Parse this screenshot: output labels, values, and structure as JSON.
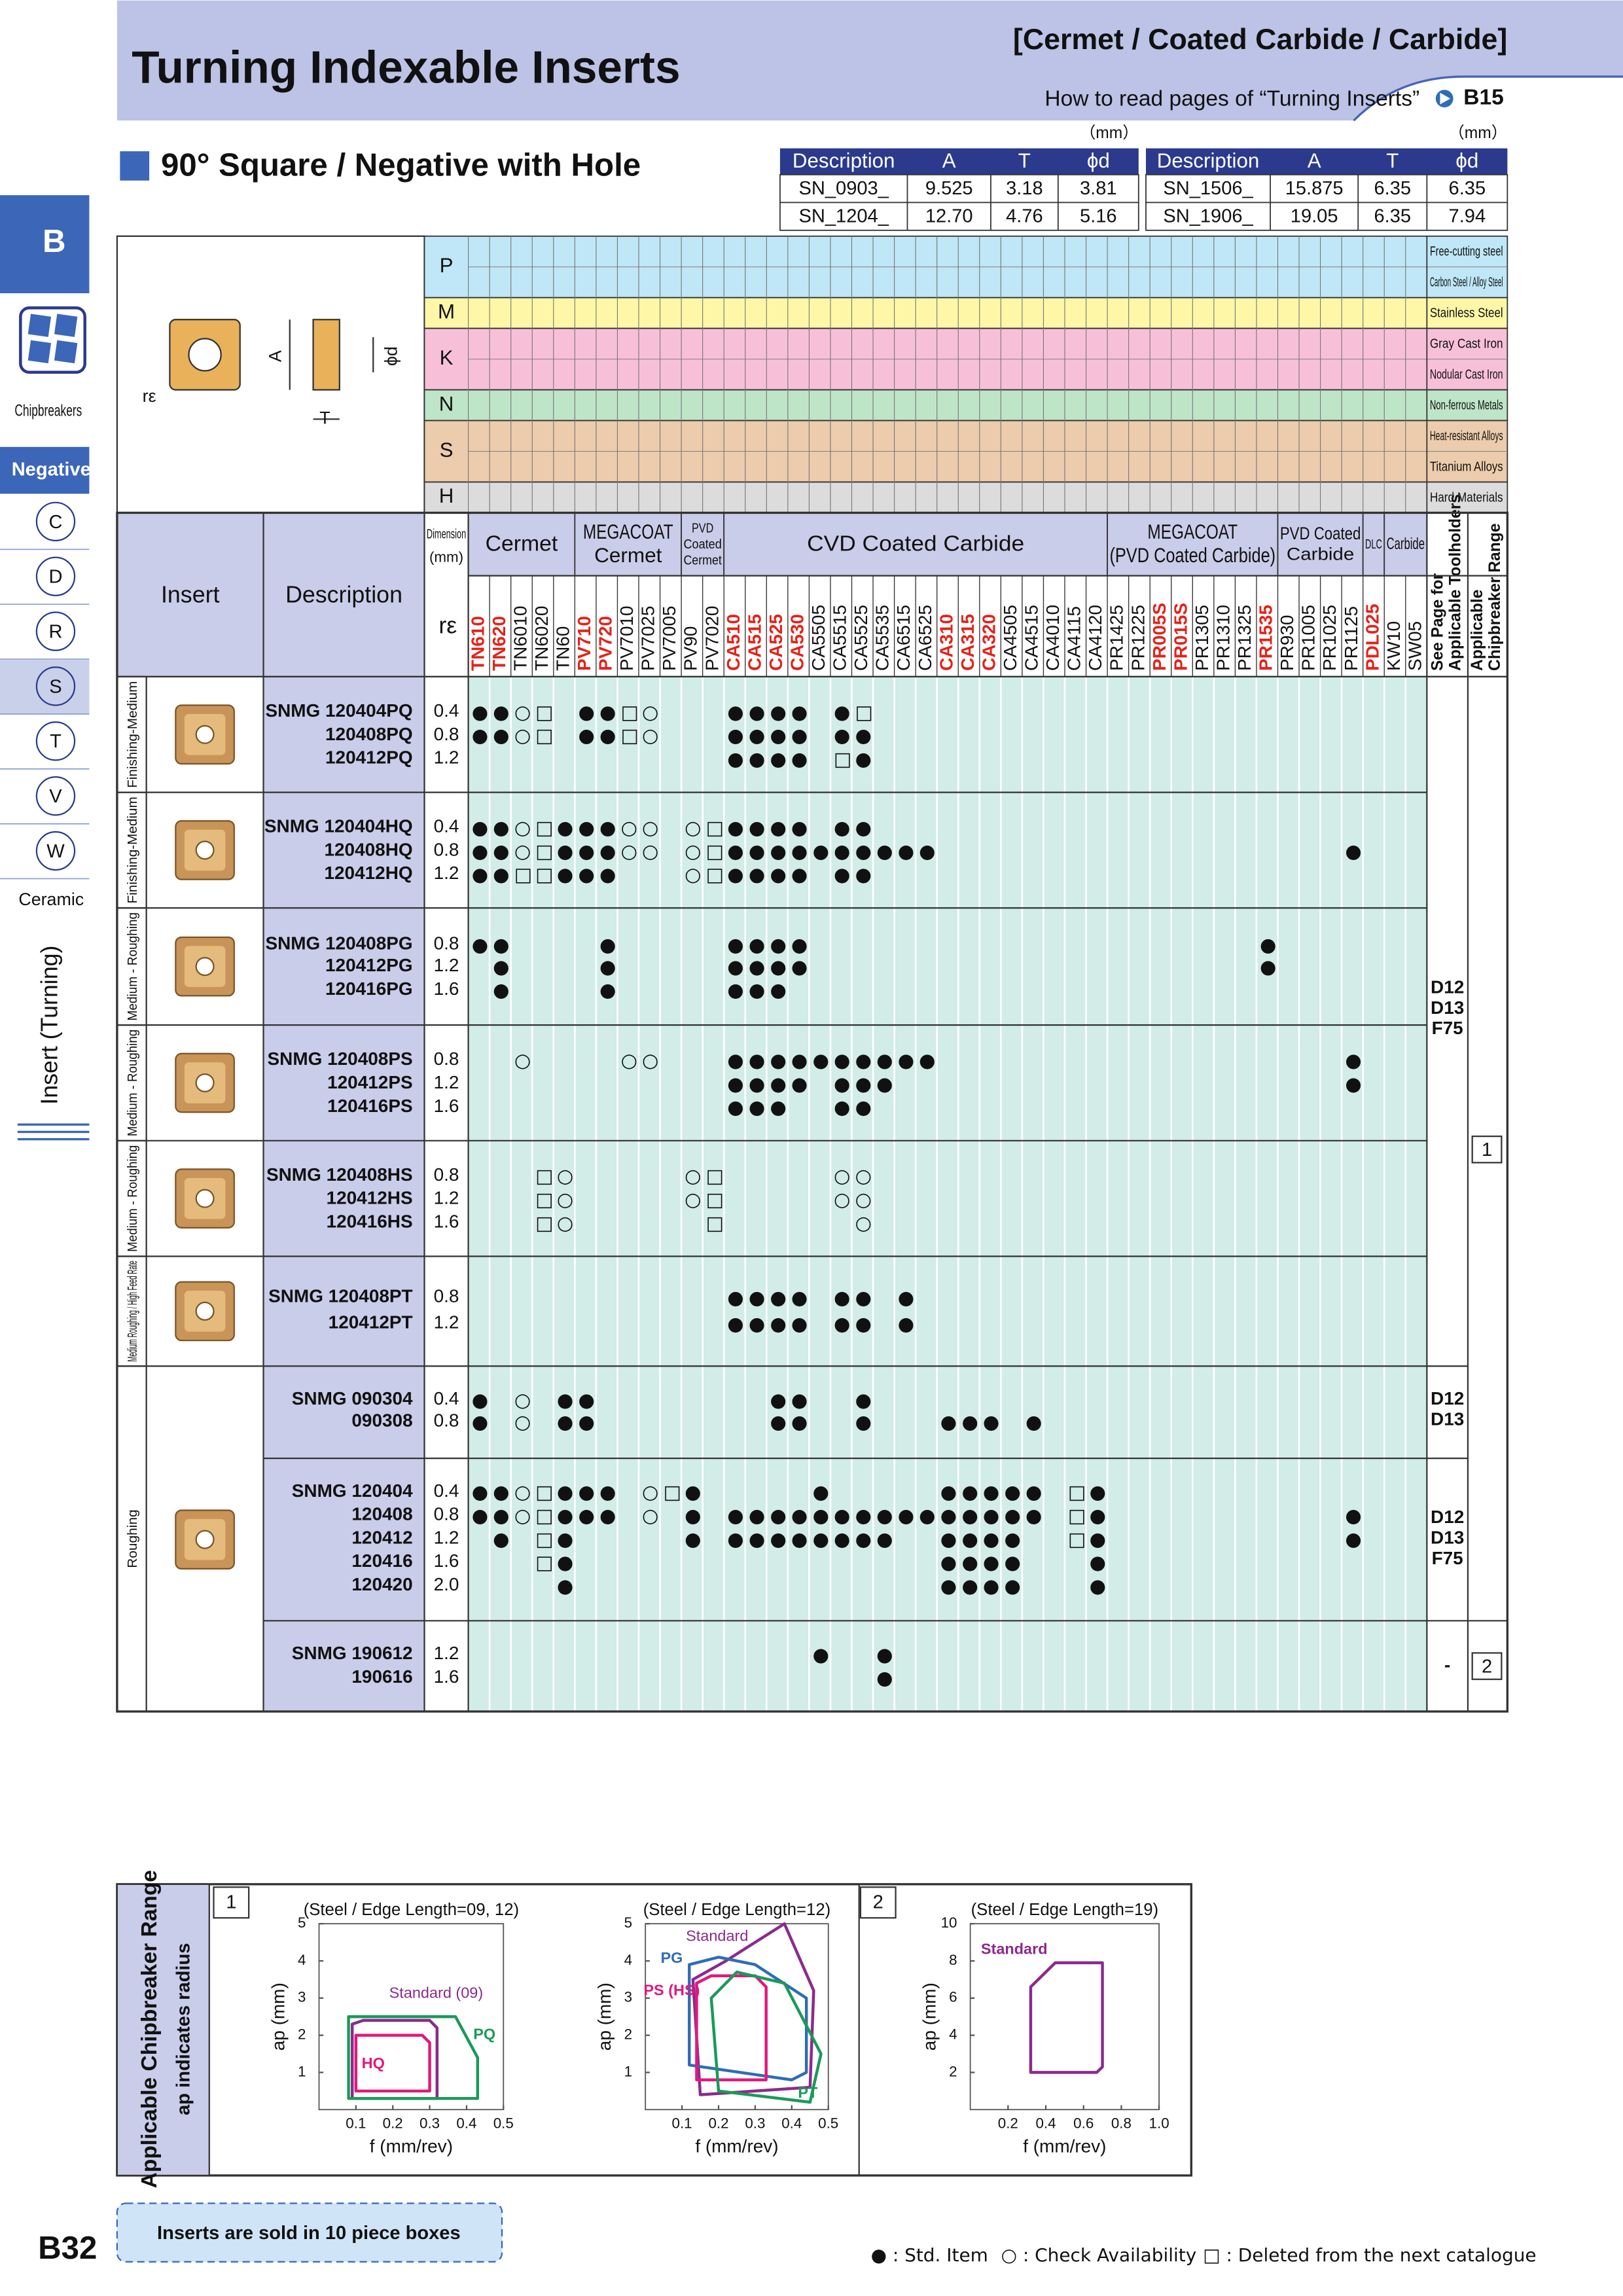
{
  "header": {
    "title": "Turning Indexable Inserts",
    "category": "[Cermet / Coated Carbide / Carbide]",
    "howto": "How to read pages of “Turning Inserts”",
    "ref": "B15"
  },
  "section_title": "90° Square / Negative with Hole",
  "dim_tables": [
    {
      "unit": "（mm）",
      "headers": [
        "Description",
        "A",
        "T",
        "ϕd"
      ],
      "rows": [
        [
          "SN_0903_",
          "9.525",
          "3.18",
          "3.81"
        ],
        [
          "SN_1204_",
          "12.70",
          "4.76",
          "5.16"
        ]
      ]
    },
    {
      "unit": "（mm）",
      "headers": [
        "Description",
        "A",
        "T",
        "ϕd"
      ],
      "rows": [
        [
          "SN_1506_",
          "15.875",
          "6.35",
          "6.35"
        ],
        [
          "SN_1906_",
          "19.05",
          "6.35",
          "7.94"
        ]
      ]
    }
  ],
  "sidebar": {
    "tab": "B",
    "chipbreakers": "Chipbreakers",
    "negative": "Negative",
    "shapes": [
      "C",
      "D",
      "R",
      "S",
      "T",
      "V",
      "W"
    ],
    "ceramic": "Ceramic",
    "vertical": "Insert (Turning)"
  },
  "diagram": {
    "labels": [
      "A",
      "ϕd",
      "T",
      "rε"
    ]
  },
  "materials": [
    {
      "letter": "P",
      "names": [
        "Free-cutting steel",
        "Carbon Steel / Alloy Steel"
      ],
      "color": "#bfe7f7"
    },
    {
      "letter": "M",
      "names": [
        "Stainless Steel"
      ],
      "color": "#fff7a8"
    },
    {
      "letter": "K",
      "names": [
        "Gray Cast Iron",
        "Nodular Cast Iron"
      ],
      "color": "#f8c0d8"
    },
    {
      "letter": "N",
      "names": [
        "Non-ferrous Metals"
      ],
      "color": "#bfe5c9"
    },
    {
      "letter": "S",
      "names": [
        "Heat-resistant Alloys",
        "Titanium Alloys"
      ],
      "color": "#ecccac"
    },
    {
      "letter": "H",
      "names": [
        "Hard Materials"
      ],
      "color": "#dcdcdc"
    }
  ],
  "table": {
    "insert": "Insert",
    "description": "Description",
    "dimension": [
      "Dimension",
      "(mm)"
    ],
    "re": "rε",
    "toolholders": [
      "See Page for",
      "Applicable Toolholders"
    ],
    "chipbreaker": [
      "Applicable",
      "Chipbreaker Range"
    ],
    "groups": [
      {
        "name": [
          "Cermet"
        ],
        "grades": [
          {
            "name": "TN610",
            "color": "#e2231a"
          },
          {
            "name": "TN620",
            "color": "#e2231a"
          },
          {
            "name": "TN6010",
            "color": "#111111"
          },
          {
            "name": "TN6020",
            "color": "#111111"
          },
          {
            "name": "TN60",
            "color": "#111111"
          }
        ]
      },
      {
        "name": [
          "MEGACOAT",
          "Cermet"
        ],
        "grades": [
          {
            "name": "PV710",
            "color": "#e2231a"
          },
          {
            "name": "PV720",
            "color": "#e2231a"
          },
          {
            "name": "PV7010",
            "color": "#111111"
          },
          {
            "name": "PV7025",
            "color": "#111111"
          },
          {
            "name": "PV7005",
            "color": "#111111"
          }
        ]
      },
      {
        "name": [
          "PVD",
          "Coated",
          "Cermet"
        ],
        "grades": [
          {
            "name": "PV90",
            "color": "#111111"
          },
          {
            "name": "PV7020",
            "color": "#111111"
          }
        ]
      },
      {
        "name": [
          "CVD Coated Carbide"
        ],
        "grades": [
          {
            "name": "CA510",
            "color": "#e2231a"
          },
          {
            "name": "CA515",
            "color": "#e2231a"
          },
          {
            "name": "CA525",
            "color": "#e2231a"
          },
          {
            "name": "CA530",
            "color": "#e2231a"
          },
          {
            "name": "CA5505",
            "color": "#111111"
          },
          {
            "name": "CA5515",
            "color": "#111111"
          },
          {
            "name": "CA5525",
            "color": "#111111"
          },
          {
            "name": "CA5535",
            "color": "#111111"
          },
          {
            "name": "CA6515",
            "color": "#111111"
          },
          {
            "name": "CA6525",
            "color": "#111111"
          },
          {
            "name": "CA310",
            "color": "#e2231a"
          },
          {
            "name": "CA315",
            "color": "#e2231a"
          },
          {
            "name": "CA320",
            "color": "#e2231a"
          },
          {
            "name": "CA4505",
            "color": "#111111"
          },
          {
            "name": "CA4515",
            "color": "#111111"
          },
          {
            "name": "CA4010",
            "color": "#111111"
          },
          {
            "name": "CA4115",
            "color": "#111111"
          },
          {
            "name": "CA4120",
            "color": "#111111"
          }
        ]
      },
      {
        "name": [
          "MEGACOAT",
          "(PVD Coated Carbide)"
        ],
        "grades": [
          {
            "name": "PR1425",
            "color": "#111111"
          },
          {
            "name": "PR1225",
            "color": "#111111"
          },
          {
            "name": "PR005S",
            "color": "#e2231a"
          },
          {
            "name": "PR015S",
            "color": "#e2231a"
          },
          {
            "name": "PR1305",
            "color": "#111111"
          },
          {
            "name": "PR1310",
            "color": "#111111"
          },
          {
            "name": "PR1325",
            "color": "#111111"
          },
          {
            "name": "PR1535",
            "color": "#e2231a"
          }
        ]
      },
      {
        "name": [
          "PVD Coated",
          "Carbide"
        ],
        "grades": [
          {
            "name": "PR930",
            "color": "#111111"
          },
          {
            "name": "PR1005",
            "color": "#111111"
          },
          {
            "name": "PR1025",
            "color": "#111111"
          },
          {
            "name": "PR1125",
            "color": "#111111"
          }
        ]
      },
      {
        "name": [
          "DLC"
        ],
        "grades": [
          {
            "name": "PDL025",
            "color": "#e2231a"
          }
        ]
      },
      {
        "name": [
          "Carbide"
        ],
        "grades": [
          {
            "name": "KW10",
            "color": "#111111"
          },
          {
            "name": "SW05",
            "color": "#111111"
          }
        ]
      }
    ],
    "applications": [
      "Finishing-Medium",
      "Finishing-Medium",
      "Medium - Roughing",
      "Medium - Roughing",
      "Medium - Roughing",
      "Medium Roughing / High Feed Rate",
      "Roughing"
    ],
    "inserts": [
      {
        "rows": [
          {
            "code": "SNMG 120404PQ",
            "re": "0.4",
            "avail": "●●○□ ●●□○   ●●●● ●□"
          },
          {
            "code": "120408PQ",
            "re": "0.8",
            "avail": "●●○□ ●●□○   ●●●● ●●"
          },
          {
            "code": "120412PQ",
            "re": "1.2",
            "avail": "            ●●●● □●"
          }
        ]
      },
      {
        "rows": [
          {
            "code": "SNMG 120404HQ",
            "re": "0.4",
            "avail": "●●○□●●●○○ ○□●●●● ●●"
          },
          {
            "code": "120408HQ",
            "re": "0.8",
            "avail": "●●○□●●●○○ ○□●●●●●●●●●●                   ●"
          },
          {
            "code": "120412HQ",
            "re": "1.2",
            "avail": "●●□□●●●   ○□●●●● ●●"
          }
        ]
      },
      {
        "rows": [
          {
            "code": "SNMG 120408PG",
            "re": "0.8",
            "avail": "●●    ●     ●●●●                     ●"
          },
          {
            "code": "120412PG",
            "re": "1.2",
            "avail": " ●    ●     ●●●●                     ●"
          },
          {
            "code": "120416PG",
            "re": "1.6",
            "avail": " ●    ●     ●●●"
          }
        ]
      },
      {
        "rows": [
          {
            "code": "SNMG 120408PS",
            "re": "0.8",
            "avail": "  ○    ○○   ●●●●●●●●●●                   ●"
          },
          {
            "code": "120412PS",
            "re": "1.2",
            "avail": "            ●●●● ●●●                     ●"
          },
          {
            "code": "120416PS",
            "re": "1.6",
            "avail": "            ●●●  ●●"
          }
        ]
      },
      {
        "rows": [
          {
            "code": "SNMG 120408HS",
            "re": "0.8",
            "avail": "   □○     ○□     ○○"
          },
          {
            "code": "120412HS",
            "re": "1.2",
            "avail": "   □○     ○□     ○○"
          },
          {
            "code": "120416HS",
            "re": "1.6",
            "avail": "   □○      □      ○"
          }
        ]
      },
      {
        "rows": [
          {
            "code": "SNMG 120408PT",
            "re": "0.8",
            "avail": "            ●●●● ●● ●"
          },
          {
            "code": "120412PT",
            "re": "1.2",
            "avail": "            ●●●● ●● ●"
          }
        ]
      },
      {
        "rows": [
          {
            "code": "SNMG 090304",
            "re": "0.4",
            "avail": "● ○ ●●        ●●  ●"
          },
          {
            "code": "090308",
            "re": "0.8",
            "avail": "● ○ ●●        ●●  ●   ●●● ●"
          }
        ]
      },
      {
        "rows": [
          {
            "code": "SNMG 120404",
            "re": "0.4",
            "avail": "●●○□●●● ○□●     ●     ●●●●● □●"
          },
          {
            "code": "120408",
            "re": "0.8",
            "avail": "●●○□●●● ○ ● ●●●●●●●●●●●●●●● □●           ●"
          },
          {
            "code": "120412",
            "re": "1.2",
            "avail": " ● □●     ● ●●●●●●●●  ●●●●  □●           ●"
          },
          {
            "code": "120416",
            "re": "1.6",
            "avail": "   □●                 ●●●●   ●"
          },
          {
            "code": "120420",
            "re": "2.0",
            "avail": "    ●                 ●●●●   ●"
          }
        ]
      },
      {
        "rows": [
          {
            "code": "SNMG 190612",
            "re": "1.2",
            "avail": "                ●  ●"
          },
          {
            "code": "190616",
            "re": "1.6",
            "avail": "                   ●"
          }
        ]
      }
    ],
    "toolholder_refs": [
      [
        "D12",
        "D13",
        "F75"
      ],
      [
        "D12",
        "D13"
      ],
      [
        "D12",
        "D13",
        "F75"
      ],
      [
        "-"
      ]
    ],
    "chipbreaker_refs": [
      "1",
      "2"
    ]
  },
  "charts_panel": {
    "title": "Applicable Chipbreaker Range",
    "note": "ap indicates radius",
    "boxes": [
      "1",
      "2"
    ]
  },
  "chart_data": [
    {
      "type": "region",
      "title": "(Steel / Edge Length=09, 12)",
      "xlabel": "f (mm/rev)",
      "ylabel": "ap (mm)",
      "xlim": [
        0,
        0.5
      ],
      "ylim": [
        0,
        5
      ],
      "xticks": [
        0.1,
        0.2,
        0.3,
        0.4,
        0.5
      ],
      "yticks": [
        1,
        2,
        3,
        4,
        5
      ],
      "regions": [
        {
          "name": "Standard (09)",
          "color": "#8b2a8e",
          "points": [
            [
              0.09,
              0.3
            ],
            [
              0.09,
              2.3
            ],
            [
              0.12,
              2.4
            ],
            [
              0.3,
              2.4
            ],
            [
              0.32,
              2.2
            ],
            [
              0.32,
              0.3
            ]
          ]
        },
        {
          "name": "HQ",
          "color": "#e0197d",
          "points": [
            [
              0.1,
              0.5
            ],
            [
              0.1,
              2.0
            ],
            [
              0.28,
              2.0
            ],
            [
              0.3,
              1.8
            ],
            [
              0.3,
              0.5
            ]
          ]
        },
        {
          "name": "PQ",
          "color": "#1a9a5a",
          "points": [
            [
              0.08,
              0.3
            ],
            [
              0.08,
              2.5
            ],
            [
              0.37,
              2.5
            ],
            [
              0.43,
              1.4
            ],
            [
              0.43,
              0.3
            ]
          ]
        }
      ]
    },
    {
      "type": "region",
      "title": "(Steel / Edge Length=12)",
      "xlabel": "f (mm/rev)",
      "ylabel": "ap (mm)",
      "xlim": [
        0,
        0.5
      ],
      "ylim": [
        0,
        5
      ],
      "xticks": [
        0.1,
        0.2,
        0.3,
        0.4,
        0.5
      ],
      "yticks": [
        1,
        2,
        3,
        4,
        5
      ],
      "regions": [
        {
          "name": "Standard",
          "color": "#8b2a8e",
          "points": [
            [
              0.15,
              0.4
            ],
            [
              0.13,
              3.5
            ],
            [
              0.22,
              4.0
            ],
            [
              0.38,
              5
            ],
            [
              0.46,
              3.2
            ],
            [
              0.45,
              0.6
            ]
          ]
        },
        {
          "name": "PG",
          "color": "#2f6db5",
          "points": [
            [
              0.12,
              1.2
            ],
            [
              0.12,
              3.9
            ],
            [
              0.2,
              4.1
            ],
            [
              0.3,
              3.9
            ],
            [
              0.44,
              3.0
            ],
            [
              0.44,
              1.0
            ],
            [
              0.4,
              0.8
            ]
          ]
        },
        {
          "name": "PS (HS)",
          "color": "#e0197d",
          "points": [
            [
              0.14,
              0.8
            ],
            [
              0.14,
              3.4
            ],
            [
              0.18,
              3.6
            ],
            [
              0.3,
              3.6
            ],
            [
              0.33,
              3.3
            ],
            [
              0.33,
              0.8
            ]
          ]
        },
        {
          "name": "PT",
          "color": "#1a9a5a",
          "points": [
            [
              0.2,
              0.5
            ],
            [
              0.18,
              3.0
            ],
            [
              0.25,
              3.7
            ],
            [
              0.38,
              3.4
            ],
            [
              0.48,
              1.5
            ],
            [
              0.45,
              0.2
            ]
          ]
        }
      ]
    },
    {
      "type": "region",
      "title": "(Steel / Edge Length=19)",
      "xlabel": "f (mm/rev)",
      "ylabel": "ap (mm)",
      "xlim": [
        0,
        1
      ],
      "ylim": [
        0,
        10
      ],
      "xticks": [
        0.2,
        0.4,
        0.6,
        0.8,
        {
          "value": 1,
          "label": "1.0"
        }
      ],
      "yticks": [
        2,
        4,
        6,
        8,
        10
      ],
      "regions": [
        {
          "name": "Standard",
          "color": "#8b2a8e",
          "points": [
            [
              0.32,
              2
            ],
            [
              0.32,
              6.6
            ],
            [
              0.45,
              7.9
            ],
            [
              0.7,
              7.9
            ],
            [
              0.7,
              2.3
            ],
            [
              0.67,
              2
            ]
          ]
        }
      ]
    }
  ],
  "footer": {
    "page": "B32",
    "note": "Inserts are sold in 10 piece boxes",
    "legend": [
      "● : Std. Item",
      "○ : Check Availability",
      "□ : Deleted from the next catalogue"
    ]
  }
}
